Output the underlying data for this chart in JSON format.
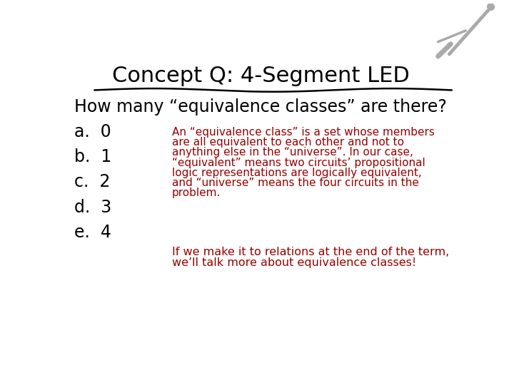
{
  "title": "Concept Q: 4-Segment LED",
  "title_fontsize": 22,
  "title_color": "#000000",
  "bg_color": "#ffffff",
  "question": "How many “equivalence classes” are there?",
  "question_fontsize": 17,
  "question_color": "#000000",
  "options": [
    "a.  0",
    "b.  1",
    "c.  2",
    "d.  3",
    "e.  4"
  ],
  "options_fontsize": 17,
  "options_color": "#000000",
  "explanation_lines": [
    "An “equivalence class” is a set whose members",
    "are all equivalent to each other and not to",
    "anything else in the “universe”. In our case,",
    "“equivalent” means two circuits’ propositional",
    "logic representations are logically equivalent,",
    "and “universe” means the four circuits in the",
    "problem."
  ],
  "explanation_fontsize": 11,
  "explanation_color": "#990000",
  "footer_lines": [
    "If we make it to relations at the end of the term,",
    "we’ll talk more about equivalence classes!"
  ],
  "footer_fontsize": 11.5,
  "footer_color": "#990000",
  "divider_color": "#000000"
}
